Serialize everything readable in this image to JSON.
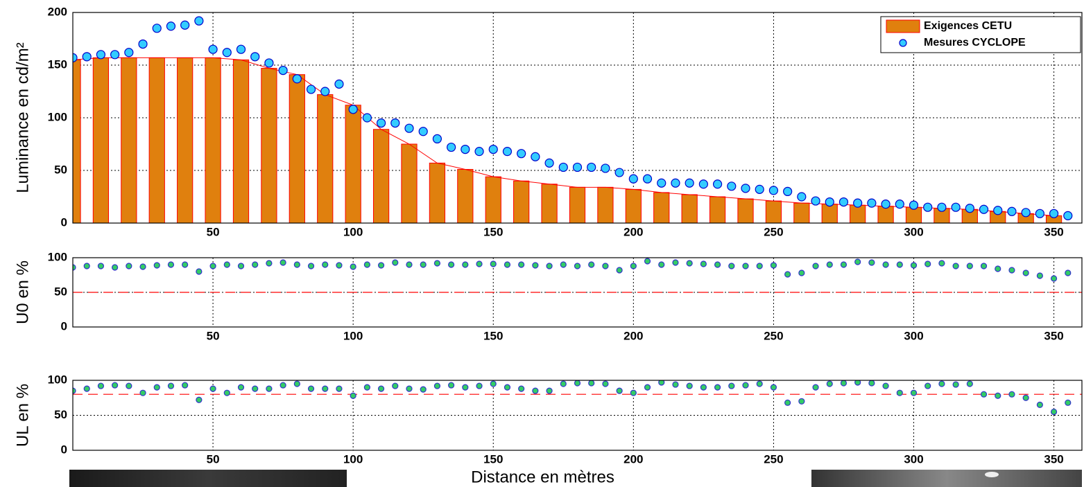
{
  "chart_data": [
    {
      "type": "bar",
      "ylabel": "Luminance en cd/m²",
      "xlim": [
        0,
        360
      ],
      "ylim": [
        0,
        200
      ],
      "xticks": [
        50,
        100,
        150,
        200,
        250,
        300,
        350
      ],
      "yticks": [
        0,
        50,
        100,
        150,
        200
      ],
      "grid": true,
      "legend": "upper right",
      "series": [
        {
          "name": "Exigences CETU",
          "type": "bar",
          "color": "#e0800e",
          "edgecolor": "#ff0000",
          "x": [
            0,
            10,
            20,
            30,
            40,
            50,
            60,
            70,
            80,
            90,
            100,
            110,
            120,
            130,
            140,
            150,
            160,
            170,
            180,
            190,
            200,
            210,
            220,
            230,
            240,
            250,
            260,
            270,
            280,
            290,
            300,
            310,
            320,
            330,
            340,
            350
          ],
          "values": [
            155,
            157,
            157,
            157,
            157,
            157,
            155,
            147,
            141,
            122,
            112,
            89,
            75,
            57,
            51,
            44,
            40,
            37,
            34,
            34,
            32,
            29,
            27,
            25,
            23,
            21,
            19,
            18,
            17,
            16,
            15,
            14,
            13,
            11,
            9,
            7
          ]
        },
        {
          "name": "Mesures CYCLOPE",
          "type": "scatter",
          "color": "#33ccff",
          "edgecolor": "#0000cc",
          "x": [
            0,
            5,
            10,
            15,
            20,
            25,
            30,
            35,
            40,
            45,
            50,
            55,
            60,
            65,
            70,
            75,
            80,
            85,
            90,
            95,
            100,
            105,
            110,
            115,
            120,
            125,
            130,
            135,
            140,
            145,
            150,
            155,
            160,
            165,
            170,
            175,
            180,
            185,
            190,
            195,
            200,
            205,
            210,
            215,
            220,
            225,
            230,
            235,
            240,
            245,
            250,
            255,
            260,
            265,
            270,
            275,
            280,
            285,
            290,
            295,
            300,
            305,
            310,
            315,
            320,
            325,
            330,
            335,
            340,
            345,
            350,
            355
          ],
          "values": [
            157,
            158,
            160,
            160,
            162,
            170,
            185,
            187,
            188,
            192,
            165,
            162,
            165,
            158,
            152,
            145,
            137,
            127,
            125,
            132,
            108,
            100,
            95,
            95,
            90,
            87,
            80,
            72,
            70,
            68,
            70,
            68,
            66,
            63,
            57,
            53,
            53,
            53,
            52,
            48,
            42,
            42,
            38,
            38,
            38,
            37,
            37,
            35,
            33,
            32,
            31,
            30,
            25,
            21,
            20,
            20,
            19,
            19,
            18,
            18,
            17,
            15,
            15,
            15,
            14,
            13,
            12,
            11,
            10,
            9,
            9,
            7
          ]
        }
      ]
    },
    {
      "type": "scatter",
      "ylabel": "U0 en %",
      "xlim": [
        0,
        360
      ],
      "ylim": [
        0,
        100
      ],
      "xticks": [
        50,
        100,
        150,
        200,
        250,
        300,
        350
      ],
      "yticks": [
        0,
        50,
        100
      ],
      "grid": true,
      "threshold": 50,
      "series": [
        {
          "color": "#33cc66",
          "edgecolor": "#3333cc",
          "x": [
            0,
            5,
            10,
            15,
            20,
            25,
            30,
            35,
            40,
            45,
            50,
            55,
            60,
            65,
            70,
            75,
            80,
            85,
            90,
            95,
            100,
            105,
            110,
            115,
            120,
            125,
            130,
            135,
            140,
            145,
            150,
            155,
            160,
            165,
            170,
            175,
            180,
            185,
            190,
            195,
            200,
            205,
            210,
            215,
            220,
            225,
            230,
            235,
            240,
            245,
            250,
            255,
            260,
            265,
            270,
            275,
            280,
            285,
            290,
            295,
            300,
            305,
            310,
            315,
            320,
            325,
            330,
            335,
            340,
            345,
            350,
            355
          ],
          "values": [
            86,
            88,
            88,
            86,
            88,
            87,
            89,
            90,
            90,
            80,
            88,
            90,
            88,
            90,
            92,
            93,
            90,
            88,
            90,
            89,
            87,
            90,
            89,
            93,
            90,
            90,
            92,
            90,
            90,
            91,
            91,
            90,
            90,
            89,
            88,
            90,
            88,
            90,
            88,
            82,
            88,
            95,
            90,
            93,
            92,
            91,
            90,
            88,
            88,
            88,
            89,
            76,
            78,
            88,
            90,
            90,
            94,
            93,
            90,
            90,
            89,
            91,
            92,
            88,
            88,
            88,
            84,
            82,
            78,
            74,
            70,
            78
          ]
        }
      ]
    },
    {
      "type": "scatter",
      "ylabel": "UL en %",
      "xlabel": "Distance en mètres",
      "xlim": [
        0,
        360
      ],
      "ylim": [
        0,
        100
      ],
      "xticks": [
        50,
        100,
        150,
        200,
        250,
        300,
        350
      ],
      "yticks": [
        0,
        50,
        100
      ],
      "grid": true,
      "threshold": 80,
      "series": [
        {
          "color": "#33cc66",
          "edgecolor": "#3333cc",
          "x": [
            0,
            5,
            10,
            15,
            20,
            25,
            30,
            35,
            40,
            45,
            50,
            55,
            60,
            65,
            70,
            75,
            80,
            85,
            90,
            95,
            100,
            105,
            110,
            115,
            120,
            125,
            130,
            135,
            140,
            145,
            150,
            155,
            160,
            165,
            170,
            175,
            180,
            185,
            190,
            195,
            200,
            205,
            210,
            215,
            220,
            225,
            230,
            235,
            240,
            245,
            250,
            255,
            260,
            265,
            270,
            275,
            280,
            285,
            290,
            295,
            300,
            305,
            310,
            315,
            320,
            325,
            330,
            335,
            340,
            345,
            350,
            355
          ],
          "values": [
            85,
            88,
            92,
            93,
            92,
            82,
            90,
            92,
            93,
            72,
            88,
            82,
            90,
            88,
            88,
            93,
            95,
            88,
            88,
            88,
            78,
            90,
            88,
            92,
            88,
            87,
            92,
            93,
            90,
            92,
            95,
            90,
            88,
            85,
            85,
            95,
            96,
            96,
            95,
            85,
            82,
            90,
            97,
            94,
            92,
            90,
            90,
            92,
            93,
            95,
            90,
            68,
            70,
            90,
            95,
            96,
            97,
            96,
            92,
            82,
            82,
            92,
            95,
            94,
            95,
            80,
            78,
            80,
            75,
            65,
            55,
            68
          ]
        }
      ]
    }
  ]
}
